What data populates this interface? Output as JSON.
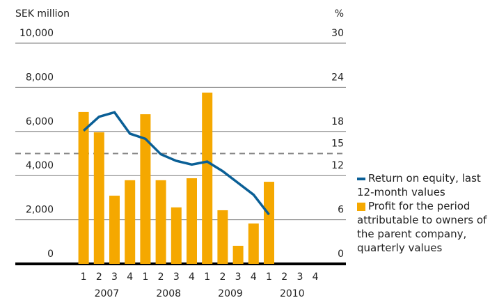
{
  "chart_data": {
    "type": "bar",
    "y_label": "SEK million",
    "y2_label": "%",
    "categories": [
      "1",
      "2",
      "3",
      "4",
      "1",
      "2",
      "3",
      "4",
      "1",
      "2",
      "3",
      "4",
      "1",
      "2",
      "3",
      "4"
    ],
    "years": [
      "2007",
      "2008",
      "2009",
      "2010"
    ],
    "series": [
      {
        "name": "Return on equity, last 12-month values",
        "type": "line",
        "axis": "y2",
        "color": "#0a5f96",
        "values": [
          18.1,
          20.0,
          20.6,
          17.7,
          17.0,
          14.9,
          14.0,
          13.5,
          13.9,
          12.6,
          11.0,
          9.4,
          6.7,
          null,
          null,
          null
        ]
      },
      {
        "name": "Profit for the period attributable to owners of the parent company, quarterly values",
        "type": "bar",
        "color": "#f5a800",
        "values": [
          6880,
          5960,
          3090,
          3790,
          6780,
          3790,
          2560,
          3880,
          7760,
          2430,
          820,
          1830,
          3720,
          null,
          null,
          null
        ]
      }
    ],
    "ylim": [
      0,
      10000
    ],
    "yticks": [
      {
        "value": 0,
        "label": "0"
      },
      {
        "value": 2000,
        "label": "2,000"
      },
      {
        "value": 4000,
        "label": "4,000"
      },
      {
        "value": 6000,
        "label": "6,000"
      },
      {
        "value": 8000,
        "label": "8,000"
      },
      {
        "value": 10000,
        "label": "10,000"
      }
    ],
    "y2lim": [
      0,
      30
    ],
    "y2ticks": [
      0,
      6,
      12,
      18,
      24,
      30
    ],
    "reference_line": 15,
    "grid": true
  }
}
